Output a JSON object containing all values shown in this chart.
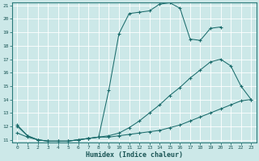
{
  "xlabel": "Humidex (Indice chaleur)",
  "bg_color": "#cce8e8",
  "grid_color": "#ffffff",
  "line_color": "#1a6b6b",
  "xlim": [
    -0.5,
    23.5
  ],
  "ylim": [
    10.8,
    21.2
  ],
  "xticks": [
    0,
    1,
    2,
    3,
    4,
    5,
    6,
    7,
    8,
    9,
    10,
    11,
    12,
    13,
    14,
    15,
    16,
    17,
    18,
    19,
    20,
    21,
    22,
    23
  ],
  "yticks": [
    11,
    12,
    13,
    14,
    15,
    16,
    17,
    18,
    19,
    20,
    21
  ],
  "line1_x": [
    0,
    1,
    2,
    3,
    4,
    5,
    6,
    7,
    8,
    9,
    10,
    11,
    12,
    13,
    14,
    15,
    16,
    17,
    18,
    19,
    20,
    21,
    22,
    23
  ],
  "line1_y": [
    12.0,
    11.3,
    11.0,
    10.9,
    10.9,
    10.9,
    11.0,
    11.1,
    11.2,
    11.2,
    11.3,
    11.4,
    11.5,
    11.6,
    11.7,
    11.9,
    12.1,
    12.4,
    12.7,
    13.0,
    13.3,
    13.6,
    13.9,
    14.0
  ],
  "line2_x": [
    0,
    1,
    2,
    3,
    4,
    5,
    6,
    7,
    8,
    9,
    10,
    11,
    12,
    13,
    14,
    15,
    16,
    17,
    18,
    19,
    20,
    21,
    22,
    23
  ],
  "line2_y": [
    11.5,
    11.2,
    11.0,
    10.9,
    10.9,
    10.9,
    11.0,
    11.1,
    11.2,
    11.3,
    11.5,
    11.9,
    12.4,
    13.0,
    13.6,
    14.3,
    14.9,
    15.6,
    16.2,
    16.8,
    17.0,
    16.5,
    15.0,
    14.0
  ],
  "line3_x": [
    0,
    1,
    2,
    3,
    4,
    5,
    6,
    7,
    8,
    9,
    10,
    11,
    12,
    13,
    14,
    15,
    16,
    17,
    18,
    19,
    20
  ],
  "line3_y": [
    12.1,
    11.3,
    11.0,
    10.9,
    10.9,
    10.9,
    11.0,
    11.1,
    11.2,
    14.7,
    18.9,
    20.4,
    20.5,
    20.6,
    21.1,
    21.2,
    20.8,
    18.5,
    18.4,
    19.3,
    19.4
  ]
}
